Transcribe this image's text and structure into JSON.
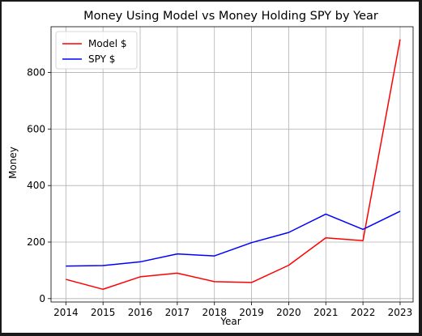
{
  "chart_data": {
    "type": "line",
    "title": "Money Using Model vs Money Holding SPY by Year",
    "xlabel": "Year",
    "ylabel": "Money",
    "x": [
      2014,
      2015,
      2016,
      2017,
      2018,
      2019,
      2020,
      2021,
      2022,
      2023
    ],
    "x_ticks": [
      "2014",
      "2015",
      "2016",
      "2017",
      "2018",
      "2019",
      "2020",
      "2021",
      "2022",
      "2023"
    ],
    "y_ticks": [
      "0",
      "200",
      "400",
      "600",
      "800"
    ],
    "y_tick_values": [
      0,
      200,
      400,
      600,
      800
    ],
    "ylim": [
      -12,
      962
    ],
    "xlim": [
      2013.6,
      2023.35
    ],
    "grid": true,
    "legend_position": "upper-left",
    "series": [
      {
        "name": "Model $",
        "color": "#ff0000",
        "values": [
          68,
          33,
          77,
          90,
          60,
          57,
          118,
          215,
          205,
          917
        ]
      },
      {
        "name": "SPY $",
        "color": "#0000ff",
        "values": [
          115,
          117,
          130,
          158,
          151,
          198,
          234,
          299,
          245,
          309
        ]
      }
    ]
  }
}
